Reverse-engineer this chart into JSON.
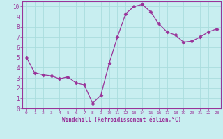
{
  "x": [
    0,
    1,
    2,
    3,
    4,
    5,
    6,
    7,
    8,
    9,
    10,
    11,
    12,
    13,
    14,
    15,
    16,
    17,
    18,
    19,
    20,
    21,
    22,
    23
  ],
  "y": [
    5.0,
    3.5,
    3.3,
    3.2,
    2.9,
    3.1,
    2.5,
    2.3,
    0.5,
    1.3,
    4.4,
    7.0,
    9.3,
    10.0,
    10.2,
    9.5,
    8.3,
    7.5,
    7.2,
    6.5,
    6.6,
    7.0,
    7.5,
    7.8
  ],
  "line_color": "#993399",
  "marker": "D",
  "marker_size": 2.5,
  "bg_color": "#c8eef0",
  "grid_color": "#aadddd",
  "xlabel": "Windchill (Refroidissement éolien,°C)",
  "xlim": [
    -0.5,
    23.5
  ],
  "ylim": [
    0,
    10.5
  ],
  "xticks": [
    0,
    1,
    2,
    3,
    4,
    5,
    6,
    7,
    8,
    9,
    10,
    11,
    12,
    13,
    14,
    15,
    16,
    17,
    18,
    19,
    20,
    21,
    22,
    23
  ],
  "yticks": [
    0,
    1,
    2,
    3,
    4,
    5,
    6,
    7,
    8,
    9,
    10
  ],
  "tick_color": "#993399",
  "label_color": "#993399",
  "spine_color": "#993399"
}
